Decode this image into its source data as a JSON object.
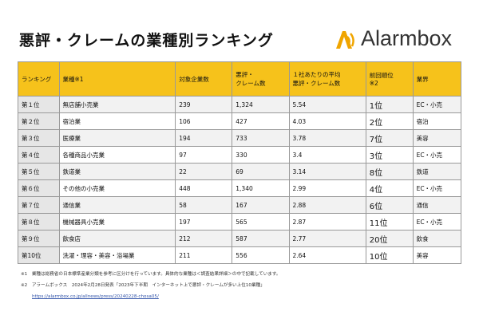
{
  "header": {
    "title": "悪評・クレームの業種別ランキング",
    "logo": "Alarmbox"
  },
  "table": {
    "columns": [
      "ランキング",
      "業種※1",
      "対象企業数",
      "悪評・\nクレーム数",
      "１社あたりの平均\n悪評・クレーム数",
      "前回順位\n※2",
      "業界"
    ],
    "rows": [
      [
        "第１位",
        "無店舗小売業",
        "239",
        "1,324",
        "5.54",
        "1位",
        "EC・小売"
      ],
      [
        "第２位",
        "宿泊業",
        "106",
        "427",
        "4.03",
        "2位",
        "宿泊"
      ],
      [
        "第３位",
        "医療業",
        "194",
        "733",
        "3.78",
        "7位",
        "美容"
      ],
      [
        "第４位",
        "各種商品小売業",
        "97",
        "330",
        "3.4",
        "3位",
        "EC・小売"
      ],
      [
        "第５位",
        "鉄道業",
        "22",
        "69",
        "3.14",
        "8位",
        "鉄道"
      ],
      [
        "第６位",
        "その他の小売業",
        "448",
        "1,340",
        "2.99",
        "4位",
        "EC・小売"
      ],
      [
        "第７位",
        "通信業",
        "58",
        "167",
        "2.88",
        "6位",
        "通信"
      ],
      [
        "第８位",
        "機械器具小売業",
        "197",
        "565",
        "2.87",
        "11位",
        "EC・小売"
      ],
      [
        "第９位",
        "飲食店",
        "212",
        "587",
        "2.77",
        "20位",
        "飲食"
      ],
      [
        "第10位",
        "洗濯・理容・美容・浴場業",
        "211",
        "556",
        "2.64",
        "10位",
        "美容"
      ]
    ]
  },
  "footnotes": [
    "※1　業種は総務省の日本標準産業分類を参考に区分けを行っています。具体的な業種は＜調査結果詳細＞の中で記載しています。",
    "※2　アラームボックス　2024年2月28日発表「2023年下半期　インターネット上で悪評・クレームが多い上位10業種」",
    "https://alarmbox.co.jp/allnews/press/20240228-chosa05/"
  ]
}
